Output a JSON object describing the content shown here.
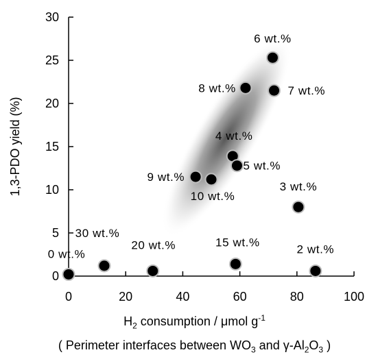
{
  "chart_data": {
    "type": "scatter",
    "xlabel_parts": {
      "pre": "H",
      "sub": "2",
      "mid": " consumption / μmol g",
      "sup": "-1"
    },
    "ylabel": "1,3-PDO yield (%)",
    "subcaption_parts": {
      "a": "( Perimeter interfaces between WO",
      "a_sub": "3",
      "b": " and γ-Al",
      "b_sub1": "2",
      "c": "O",
      "b_sub2": "3",
      "d": " )"
    },
    "xlim": [
      0,
      100
    ],
    "ylim": [
      0,
      30
    ],
    "xticks": [
      "0",
      "20",
      "40",
      "60",
      "80",
      "100"
    ],
    "yticks": [
      "0",
      "5",
      "10",
      "15",
      "20",
      "25",
      "30"
    ],
    "grid": false,
    "points": [
      {
        "label": "0 wt.%",
        "x": 0,
        "y": 0.2
      },
      {
        "label": "30 wt.%",
        "x": 12.5,
        "y": 1.2
      },
      {
        "label": "20 wt.%",
        "x": 29.5,
        "y": 0.6
      },
      {
        "label": "15 wt.%",
        "x": 58.5,
        "y": 1.4
      },
      {
        "label": "2 wt.%",
        "x": 86.5,
        "y": 0.6
      },
      {
        "label": "9 wt.%",
        "x": 44.5,
        "y": 11.5
      },
      {
        "label": "10 wt.%",
        "x": 50,
        "y": 11.2
      },
      {
        "label": "4 wt.%",
        "x": 57.5,
        "y": 13.9
      },
      {
        "label": "5 wt.%",
        "x": 59,
        "y": 12.8
      },
      {
        "label": "3 wt.%",
        "x": 80.5,
        "y": 8
      },
      {
        "label": "8 wt.%",
        "x": 62,
        "y": 21.8
      },
      {
        "label": "7 wt.%",
        "x": 72,
        "y": 21.5
      },
      {
        "label": "6 wt.%",
        "x": 71.5,
        "y": 25.3
      }
    ]
  }
}
